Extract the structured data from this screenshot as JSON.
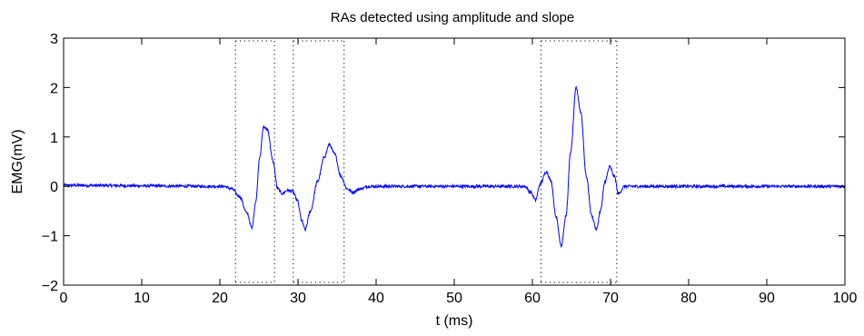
{
  "chart_data": {
    "type": "line",
    "title": "RAs detected using amplitude and slope",
    "xlabel": "t (ms)",
    "ylabel": "EMG(mV)",
    "xlim": [
      0,
      100
    ],
    "ylim": [
      -2,
      3
    ],
    "xticks": [
      0,
      10,
      20,
      30,
      40,
      50,
      60,
      70,
      80,
      90,
      100
    ],
    "yticks": [
      -2,
      -1,
      0,
      1,
      2,
      3
    ],
    "xtick_labels": [
      "0",
      "10",
      "20",
      "30",
      "40",
      "50",
      "60",
      "70",
      "80",
      "90",
      "100"
    ],
    "ytick_labels": [
      "−2",
      "−1",
      "0",
      "1",
      "2",
      "3"
    ],
    "grid": false,
    "series": [
      {
        "color": "#0000ff",
        "keypoints": [
          [
            0,
            0.02
          ],
          [
            20.5,
            0.0
          ],
          [
            21.5,
            -0.05
          ],
          [
            22.5,
            -0.2
          ],
          [
            23.5,
            -0.55
          ],
          [
            24.1,
            -0.85
          ],
          [
            24.6,
            -0.3
          ],
          [
            25.1,
            0.6
          ],
          [
            25.6,
            1.2
          ],
          [
            26.1,
            1.15
          ],
          [
            26.8,
            0.5
          ],
          [
            27.4,
            -0.05
          ],
          [
            28.0,
            -0.15
          ],
          [
            28.6,
            -0.08
          ],
          [
            29.3,
            -0.1
          ],
          [
            29.9,
            -0.28
          ],
          [
            30.5,
            -0.7
          ],
          [
            30.9,
            -0.88
          ],
          [
            31.6,
            -0.5
          ],
          [
            32.5,
            0.1
          ],
          [
            33.4,
            0.6
          ],
          [
            34.0,
            0.85
          ],
          [
            34.7,
            0.65
          ],
          [
            35.5,
            0.2
          ],
          [
            36.3,
            -0.05
          ],
          [
            37.0,
            -0.12
          ],
          [
            38.0,
            -0.05
          ],
          [
            39.0,
            0.0
          ],
          [
            59.0,
            0.0
          ],
          [
            59.8,
            -0.12
          ],
          [
            60.4,
            -0.28
          ],
          [
            61.0,
            0.05
          ],
          [
            61.8,
            0.3
          ],
          [
            62.4,
            0.1
          ],
          [
            63.0,
            -0.6
          ],
          [
            63.7,
            -1.2
          ],
          [
            64.3,
            -0.6
          ],
          [
            64.9,
            0.7
          ],
          [
            65.6,
            2.0
          ],
          [
            66.2,
            1.5
          ],
          [
            66.9,
            0.2
          ],
          [
            67.6,
            -0.6
          ],
          [
            68.2,
            -0.88
          ],
          [
            68.7,
            -0.5
          ],
          [
            69.3,
            0.1
          ],
          [
            69.9,
            0.4
          ],
          [
            70.5,
            0.2
          ],
          [
            71.0,
            -0.15
          ],
          [
            71.8,
            0.0
          ],
          [
            100,
            0.0
          ]
        ],
        "noise_amplitude_mV": 0.03
      }
    ],
    "detection_markers": [
      {
        "start": 22.0,
        "end": 27.0
      },
      {
        "start": 29.4,
        "end": 35.9
      },
      {
        "start": 61.1,
        "end": 70.8
      }
    ],
    "marker_style": "dotted vertical lines from the top to the bottom axis, joined by dotted horizontal lines along the top and bottom edges"
  }
}
